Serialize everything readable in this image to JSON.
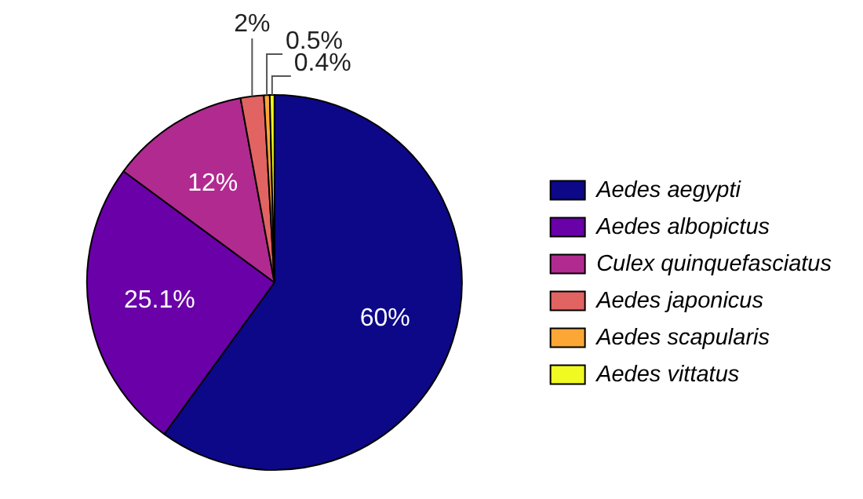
{
  "chart_data": {
    "type": "pie",
    "categories": [
      "Aedes aegypti",
      "Aedes albopictus",
      "Culex quinquefasciatus",
      "Aedes japonicus",
      "Aedes scapularis",
      "Aedes vittatus"
    ],
    "values": [
      60,
      25.1,
      12,
      2,
      0.5,
      0.4
    ],
    "value_labels": [
      "60%",
      "25.1%",
      "12%",
      "2%",
      "0.5%",
      "0.4%"
    ],
    "colors": [
      "#0d0887",
      "#6a00a8",
      "#b12a90",
      "#e16462",
      "#fca636",
      "#f0f921"
    ],
    "legend": "right"
  }
}
